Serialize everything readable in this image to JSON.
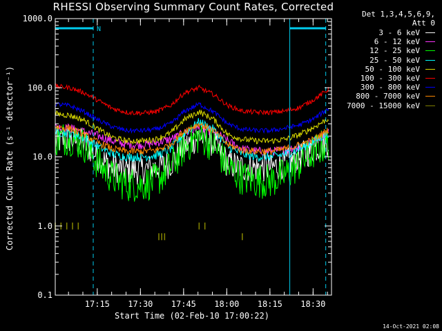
{
  "title": "RHESSI Observing Summary Count Rates, Corrected",
  "detector_info": [
    "Det 1,3,4,5,6,9,",
    "Att 0"
  ],
  "footer_timestamp": "14-Oct-2021 02:08",
  "colors": {
    "background": "#000000",
    "axes": "#ffffff",
    "attenuator_markers": "#00ccee"
  },
  "chart_data": {
    "type": "line",
    "title": "RHESSI Observing Summary Count Rates, Corrected",
    "xlabel": "Start Time (02-Feb-10 17:00:22)",
    "ylabel": "Corrected Count Rate (s⁻¹ detector⁻¹)",
    "x_unit": "minutes since 17:00:22",
    "xlim": [
      0,
      96
    ],
    "ylim": [
      0.1,
      1000
    ],
    "y_scale": "log",
    "x_ticks": [
      {
        "value": 14.6,
        "label": "17:15"
      },
      {
        "value": 29.6,
        "label": "17:30"
      },
      {
        "value": 44.6,
        "label": "17:45"
      },
      {
        "value": 59.6,
        "label": "18:00"
      },
      {
        "value": 74.6,
        "label": "18:15"
      },
      {
        "value": 89.6,
        "label": "18:30"
      }
    ],
    "y_ticks": [
      {
        "value": 0.1,
        "label": "0.1"
      },
      {
        "value": 1,
        "label": "1.0"
      },
      {
        "value": 10,
        "label": "10.0"
      },
      {
        "value": 100,
        "label": "100.0"
      },
      {
        "value": 1000,
        "label": "1000.0"
      }
    ],
    "night_marker_label": "N",
    "annotations": {
      "solid_vlines_x": [
        0,
        81.5
      ],
      "dashed_vlines_x": [
        13.2,
        94
      ],
      "night_bars": [
        [
          0,
          13.2
        ],
        [
          81.5,
          94
        ]
      ]
    },
    "series": [
      {
        "name": "3 - 6 keV",
        "color": "#ffffff",
        "noise": 0.5,
        "points": [
          [
            0,
            17
          ],
          [
            5,
            18
          ],
          [
            10,
            16
          ],
          [
            15,
            10
          ],
          [
            20,
            7
          ],
          [
            25,
            6.5
          ],
          [
            30,
            6.5
          ],
          [
            35,
            7
          ],
          [
            40,
            8
          ],
          [
            45,
            14
          ],
          [
            50,
            20
          ],
          [
            55,
            16
          ],
          [
            60,
            8
          ],
          [
            65,
            7
          ],
          [
            70,
            7
          ],
          [
            75,
            7
          ],
          [
            80,
            8
          ],
          [
            85,
            10
          ],
          [
            90,
            13
          ],
          [
            95,
            17
          ]
        ]
      },
      {
        "name": "6 - 12 keV",
        "color": "#ff33ff",
        "noise": 0.15,
        "points": [
          [
            0,
            27
          ],
          [
            5,
            26
          ],
          [
            10,
            23
          ],
          [
            15,
            20
          ],
          [
            20,
            17
          ],
          [
            25,
            15
          ],
          [
            30,
            15
          ],
          [
            35,
            16
          ],
          [
            40,
            18
          ],
          [
            45,
            22
          ],
          [
            50,
            26
          ],
          [
            55,
            23
          ],
          [
            60,
            17
          ],
          [
            65,
            13
          ],
          [
            70,
            12
          ],
          [
            75,
            12
          ],
          [
            80,
            12.5
          ],
          [
            85,
            14
          ],
          [
            90,
            17
          ],
          [
            95,
            23
          ]
        ]
      },
      {
        "name": "12 - 25 keV",
        "color": "#00ff00",
        "noise": 0.6,
        "points": [
          [
            0,
            18
          ],
          [
            5,
            19
          ],
          [
            10,
            15
          ],
          [
            15,
            8
          ],
          [
            20,
            5
          ],
          [
            25,
            4
          ],
          [
            30,
            4
          ],
          [
            35,
            4.5
          ],
          [
            40,
            7
          ],
          [
            45,
            14
          ],
          [
            50,
            20
          ],
          [
            55,
            15
          ],
          [
            60,
            7
          ],
          [
            65,
            5
          ],
          [
            70,
            4.5
          ],
          [
            75,
            4.5
          ],
          [
            80,
            5.5
          ],
          [
            85,
            8
          ],
          [
            90,
            12
          ],
          [
            95,
            16
          ]
        ]
      },
      {
        "name": "25 - 50 keV",
        "color": "#00ffff",
        "noise": 0.15,
        "points": [
          [
            0,
            23
          ],
          [
            5,
            22
          ],
          [
            10,
            19
          ],
          [
            15,
            14
          ],
          [
            20,
            11
          ],
          [
            25,
            10
          ],
          [
            30,
            10
          ],
          [
            35,
            10.5
          ],
          [
            40,
            13
          ],
          [
            45,
            22
          ],
          [
            50,
            32
          ],
          [
            55,
            25
          ],
          [
            60,
            14
          ],
          [
            65,
            11
          ],
          [
            70,
            10
          ],
          [
            75,
            10
          ],
          [
            80,
            11
          ],
          [
            85,
            13
          ],
          [
            90,
            17
          ],
          [
            95,
            22
          ]
        ]
      },
      {
        "name": "50 - 100 keV",
        "color": "#dddd00",
        "noise": 0.1,
        "points": [
          [
            0,
            42
          ],
          [
            5,
            40
          ],
          [
            10,
            34
          ],
          [
            15,
            25
          ],
          [
            20,
            19
          ],
          [
            25,
            17
          ],
          [
            30,
            17
          ],
          [
            35,
            18
          ],
          [
            40,
            22
          ],
          [
            45,
            35
          ],
          [
            50,
            45
          ],
          [
            55,
            35
          ],
          [
            60,
            21
          ],
          [
            65,
            18
          ],
          [
            70,
            17
          ],
          [
            75,
            17
          ],
          [
            80,
            18
          ],
          [
            85,
            21
          ],
          [
            90,
            27
          ],
          [
            95,
            36
          ]
        ]
      },
      {
        "name": "100 - 300 keV",
        "color": "#ff0000",
        "noise": 0.08,
        "points": [
          [
            0,
            105
          ],
          [
            5,
            100
          ],
          [
            10,
            85
          ],
          [
            15,
            65
          ],
          [
            20,
            50
          ],
          [
            25,
            44
          ],
          [
            30,
            43
          ],
          [
            35,
            45
          ],
          [
            40,
            55
          ],
          [
            45,
            85
          ],
          [
            50,
            100
          ],
          [
            55,
            80
          ],
          [
            60,
            55
          ],
          [
            65,
            46
          ],
          [
            70,
            44
          ],
          [
            75,
            44
          ],
          [
            80,
            46
          ],
          [
            85,
            52
          ],
          [
            90,
            68
          ],
          [
            95,
            95
          ]
        ]
      },
      {
        "name": "300 - 800 keV",
        "color": "#0000ff",
        "noise": 0.08,
        "points": [
          [
            0,
            58
          ],
          [
            5,
            55
          ],
          [
            10,
            45
          ],
          [
            15,
            34
          ],
          [
            20,
            27
          ],
          [
            25,
            24
          ],
          [
            30,
            24
          ],
          [
            35,
            25
          ],
          [
            40,
            30
          ],
          [
            45,
            46
          ],
          [
            50,
            58
          ],
          [
            55,
            45
          ],
          [
            60,
            30
          ],
          [
            65,
            25
          ],
          [
            70,
            24
          ],
          [
            75,
            24
          ],
          [
            80,
            26
          ],
          [
            85,
            29
          ],
          [
            90,
            36
          ],
          [
            95,
            50
          ]
        ]
      },
      {
        "name": "800 - 7000 keV",
        "color": "#ff8800",
        "noise": 0.12,
        "points": [
          [
            0,
            27
          ],
          [
            5,
            26
          ],
          [
            10,
            21
          ],
          [
            15,
            16
          ],
          [
            20,
            13
          ],
          [
            25,
            12
          ],
          [
            30,
            12
          ],
          [
            35,
            12.5
          ],
          [
            40,
            15
          ],
          [
            45,
            24
          ],
          [
            50,
            30
          ],
          [
            55,
            24
          ],
          [
            60,
            15
          ],
          [
            65,
            12.5
          ],
          [
            70,
            12
          ],
          [
            75,
            12
          ],
          [
            80,
            13
          ],
          [
            85,
            15
          ],
          [
            90,
            18
          ],
          [
            95,
            25
          ]
        ]
      },
      {
        "name": "7000 - 15000 keV",
        "color": "#808000",
        "noise": 0,
        "points": [
          [
            0,
            1.0
          ],
          [
            2,
            1.0
          ],
          [
            4,
            1.0
          ],
          [
            6,
            1.0
          ],
          [
            8,
            1.0
          ],
          [
            50,
            1.0
          ],
          [
            52,
            1.0
          ],
          [
            36,
            0.7
          ],
          [
            37,
            0.7
          ],
          [
            38,
            0.7
          ],
          [
            65,
            0.7
          ]
        ]
      }
    ]
  }
}
